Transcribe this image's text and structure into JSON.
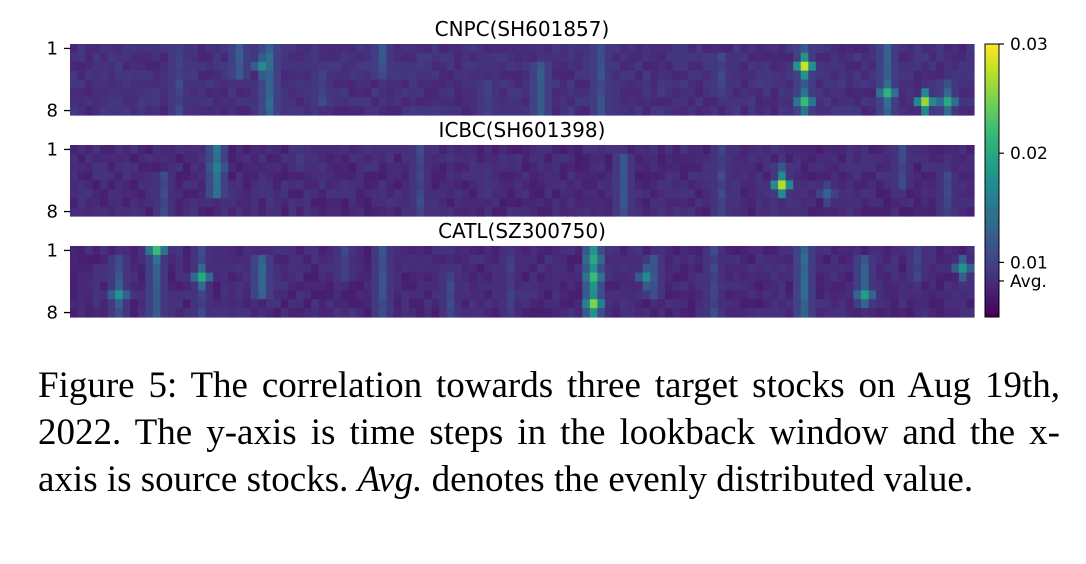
{
  "chart_data": {
    "type": "heatmap",
    "xlabel": "",
    "ylabel": "",
    "y_ticks": [
      "1",
      "8"
    ],
    "rows_per_panel": 8,
    "source_stock_count": 120,
    "colormap": "viridis",
    "colorbar": {
      "range": [
        0.005,
        0.03
      ],
      "ticks": [
        {
          "value": 0.03,
          "label": "0.03"
        },
        {
          "value": 0.02,
          "label": "0.02"
        },
        {
          "value": 0.01,
          "label": "0.01"
        },
        {
          "value": 0.0083,
          "label": "Avg."
        }
      ]
    },
    "panels": [
      {
        "title": "CNPC(SH601857)",
        "base": 0.0075,
        "columns": [
          {
            "col": 14,
            "value": 0.011,
            "rows": [
              1,
              2,
              3,
              4,
              5,
              6,
              7,
              8
            ]
          },
          {
            "col": 22,
            "value": 0.013,
            "rows": [
              1,
              2,
              3,
              4
            ]
          },
          {
            "col": 26,
            "value": 0.014,
            "rows": [
              1,
              2,
              3,
              4,
              5,
              6,
              7,
              8
            ]
          },
          {
            "col": 33,
            "value": 0.011,
            "rows": [
              4,
              5,
              6,
              7
            ]
          },
          {
            "col": 41,
            "value": 0.012,
            "rows": [
              1,
              2,
              3,
              4
            ]
          },
          {
            "col": 55,
            "value": 0.011,
            "rows": [
              5,
              6,
              7,
              8
            ]
          },
          {
            "col": 62,
            "value": 0.013,
            "rows": [
              3,
              4,
              5,
              6,
              7,
              8
            ]
          },
          {
            "col": 70,
            "value": 0.012,
            "rows": [
              1,
              2,
              3,
              4,
              5,
              6,
              7,
              8
            ]
          },
          {
            "col": 86,
            "value": 0.011,
            "rows": [
              2,
              3,
              4,
              5,
              6
            ]
          },
          {
            "col": 97,
            "value": 0.013,
            "rows": [
              1,
              2,
              3,
              4,
              5,
              6,
              7,
              8
            ]
          },
          {
            "col": 108,
            "value": 0.013,
            "rows": [
              1,
              2,
              3,
              4,
              5,
              6,
              7,
              8
            ]
          },
          {
            "col": 116,
            "value": 0.012,
            "rows": [
              5,
              6,
              7,
              8
            ]
          }
        ],
        "peaks": [
          {
            "col": 97,
            "row": 3,
            "value": 0.028
          },
          {
            "col": 97,
            "row": 7,
            "value": 0.022
          },
          {
            "col": 108,
            "row": 6,
            "value": 0.021
          },
          {
            "col": 113,
            "row": 7,
            "value": 0.026
          },
          {
            "col": 116,
            "row": 7,
            "value": 0.02
          },
          {
            "col": 25,
            "row": 3,
            "value": 0.017
          }
        ]
      },
      {
        "title": "ICBC(SH601398)",
        "base": 0.007,
        "columns": [
          {
            "col": 12,
            "value": 0.011,
            "rows": [
              4,
              5,
              6,
              7,
              8
            ]
          },
          {
            "col": 19,
            "value": 0.015,
            "rows": [
              1,
              2,
              3,
              4,
              5,
              6
            ]
          },
          {
            "col": 30,
            "value": 0.01,
            "rows": [
              1,
              2,
              3
            ]
          },
          {
            "col": 46,
            "value": 0.011,
            "rows": [
              1,
              2,
              3,
              4,
              5,
              6,
              7,
              8
            ]
          },
          {
            "col": 55,
            "value": 0.01,
            "rows": [
              3,
              4,
              5,
              6
            ]
          },
          {
            "col": 73,
            "value": 0.012,
            "rows": [
              2,
              3,
              4,
              5,
              6,
              7,
              8
            ]
          },
          {
            "col": 86,
            "value": 0.011,
            "rows": [
              1,
              2,
              3,
              4,
              5,
              6,
              7,
              8
            ]
          },
          {
            "col": 94,
            "value": 0.012,
            "rows": [
              3,
              4,
              5,
              6
            ]
          },
          {
            "col": 110,
            "value": 0.011,
            "rows": [
              1,
              2,
              3,
              4,
              5
            ]
          },
          {
            "col": 116,
            "value": 0.011,
            "rows": [
              4,
              5,
              6,
              7,
              8
            ]
          }
        ],
        "peaks": [
          {
            "col": 94,
            "row": 5,
            "value": 0.027
          },
          {
            "col": 19,
            "row": 3,
            "value": 0.016
          },
          {
            "col": 100,
            "row": 6,
            "value": 0.013
          }
        ]
      },
      {
        "title": "CATL(SZ300750)",
        "base": 0.007,
        "columns": [
          {
            "col": 6,
            "value": 0.012,
            "rows": [
              2,
              3,
              4,
              5,
              6,
              7,
              8
            ]
          },
          {
            "col": 11,
            "value": 0.013,
            "rows": [
              1,
              2,
              3,
              4,
              5,
              6,
              7,
              8
            ]
          },
          {
            "col": 17,
            "value": 0.011,
            "rows": [
              1,
              2,
              3,
              4,
              5,
              6,
              7,
              8
            ]
          },
          {
            "col": 25,
            "value": 0.014,
            "rows": [
              2,
              3,
              4,
              5,
              6
            ]
          },
          {
            "col": 36,
            "value": 0.011,
            "rows": [
              1,
              2,
              3,
              4
            ]
          },
          {
            "col": 41,
            "value": 0.012,
            "rows": [
              1,
              2,
              3,
              4,
              5,
              6,
              7,
              8
            ]
          },
          {
            "col": 50,
            "value": 0.011,
            "rows": [
              4,
              5,
              6,
              7,
              8
            ]
          },
          {
            "col": 58,
            "value": 0.01,
            "rows": [
              1,
              2,
              3,
              4,
              5,
              6,
              7,
              8
            ]
          },
          {
            "col": 69,
            "value": 0.018,
            "rows": [
              1,
              2,
              3,
              4,
              5,
              6,
              7,
              8
            ]
          },
          {
            "col": 77,
            "value": 0.012,
            "rows": [
              2,
              3,
              4,
              5,
              6
            ]
          },
          {
            "col": 85,
            "value": 0.011,
            "rows": [
              1,
              2,
              3,
              4,
              5,
              6,
              7,
              8
            ]
          },
          {
            "col": 97,
            "value": 0.014,
            "rows": [
              1,
              2,
              3,
              4,
              5,
              6,
              7,
              8
            ]
          },
          {
            "col": 105,
            "value": 0.013,
            "rows": [
              2,
              3,
              4,
              5,
              6,
              7
            ]
          },
          {
            "col": 112,
            "value": 0.011,
            "rows": [
              1,
              2,
              3,
              4
            ]
          }
        ],
        "peaks": [
          {
            "col": 69,
            "row": 7,
            "value": 0.025
          },
          {
            "col": 69,
            "row": 4,
            "value": 0.022
          },
          {
            "col": 69,
            "row": 2,
            "value": 0.02
          },
          {
            "col": 11,
            "row": 1,
            "value": 0.022
          },
          {
            "col": 17,
            "row": 4,
            "value": 0.02
          },
          {
            "col": 6,
            "row": 6,
            "value": 0.018
          },
          {
            "col": 105,
            "row": 6,
            "value": 0.019
          },
          {
            "col": 118,
            "row": 3,
            "value": 0.018
          },
          {
            "col": 76,
            "row": 4,
            "value": 0.017
          }
        ]
      }
    ]
  },
  "caption": {
    "label": "Figure 5:",
    "text_1": " The correlation towards three target stocks on Aug 19th, 2022. The y-axis is time steps in the lookback window and the x-axis is source stocks. ",
    "avg_italic": "Avg.",
    "text_2": " denotes the evenly distributed value."
  },
  "colors": {
    "colormap_stops": [
      "#440154",
      "#482878",
      "#3e4989",
      "#31688e",
      "#26828e",
      "#1f9e89",
      "#35b779",
      "#6ece58",
      "#b5de2b",
      "#fde725"
    ]
  }
}
